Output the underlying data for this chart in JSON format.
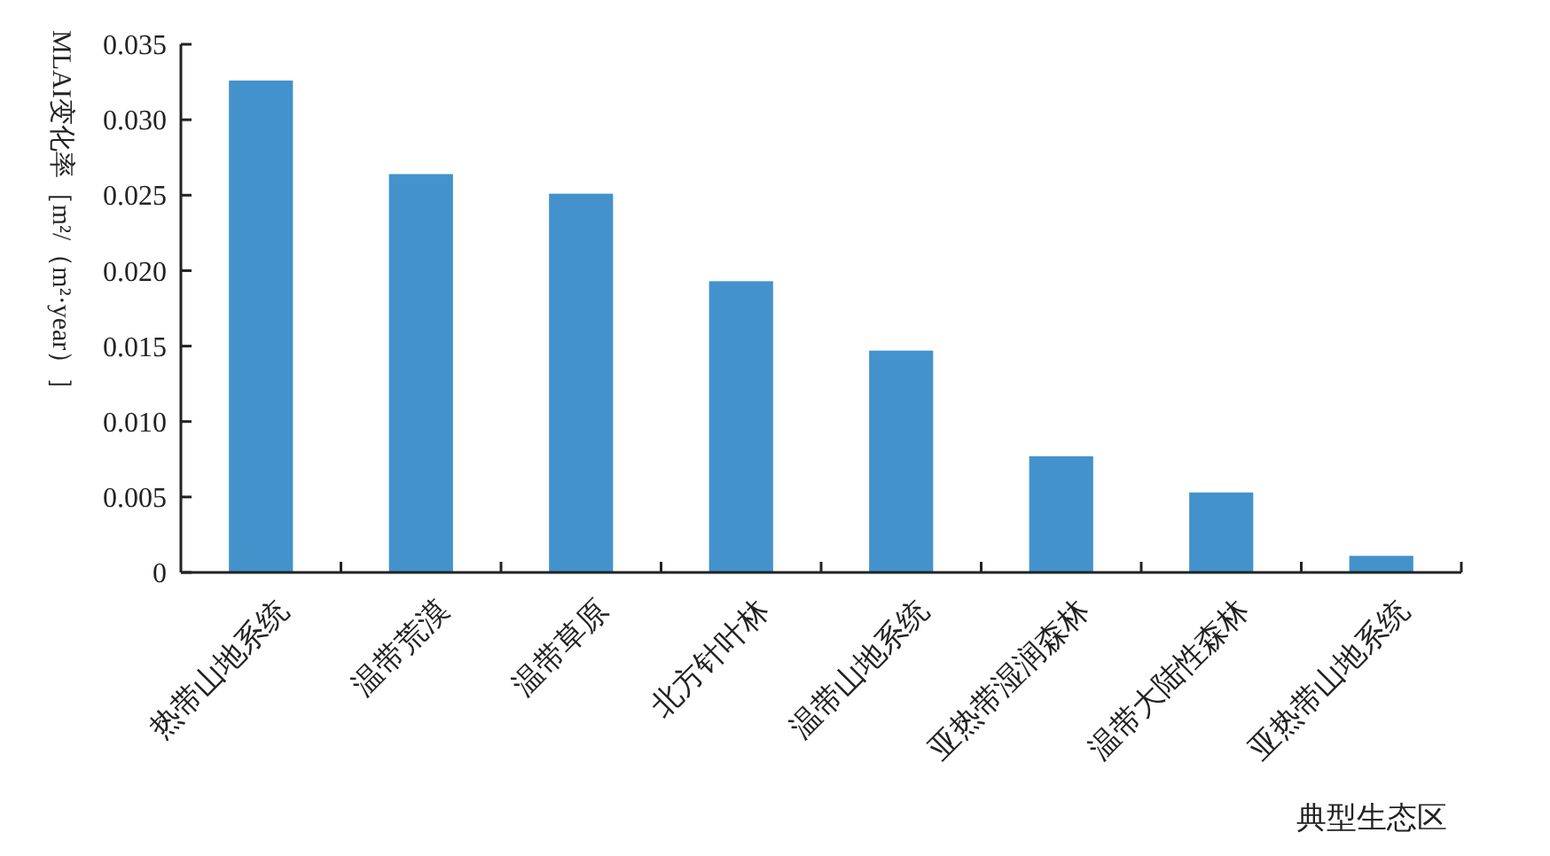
{
  "chart_data": {
    "type": "bar",
    "xlabel": "典型生态区",
    "ylabel": "MLAI变化率［m²/（m²·year）］",
    "categories": [
      "热带山地系统",
      "温带荒漠",
      "温带草原",
      "北方针叶林",
      "温带山地系统",
      "亚热带湿润森林",
      "温带大陆性森林",
      "亚热带山地系统"
    ],
    "values": [
      0.0326,
      0.0264,
      0.0251,
      0.0193,
      0.0147,
      0.0077,
      0.0053,
      0.0011
    ],
    "color": "#4392cc",
    "ylim": [
      0,
      0.035
    ],
    "yticks": [
      {
        "value": 0,
        "label": "0"
      },
      {
        "value": 0.005,
        "label": "0.005"
      },
      {
        "value": 0.01,
        "label": "0.010"
      },
      {
        "value": 0.015,
        "label": "0.015"
      },
      {
        "value": 0.02,
        "label": "0.020"
      },
      {
        "value": 0.025,
        "label": "0.025"
      },
      {
        "value": 0.03,
        "label": "0.030"
      },
      {
        "value": 0.035,
        "label": "0.035"
      }
    ],
    "grid": false
  }
}
